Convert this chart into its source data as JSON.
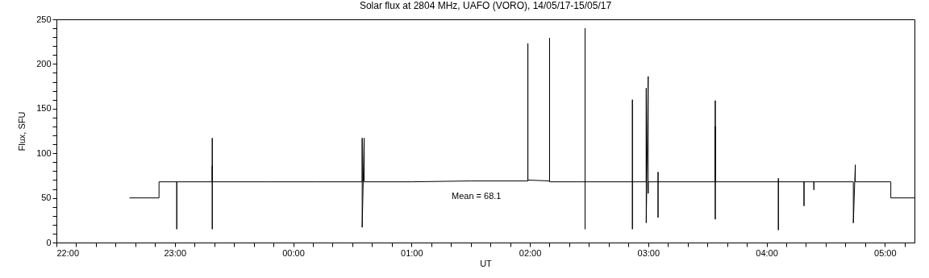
{
  "chart_data": {
    "type": "line",
    "title": "Solar flux at 2804 MHz, UAFO (VORO),  14/05/17-15/05/17",
    "xlabel": "UT",
    "ylabel": "Flux, SFU",
    "annotations": [
      "Mean =    68.1"
    ],
    "series": [
      {
        "color": "#000000",
        "x": [
          "--05-14T22:37",
          "--05-14T22:52",
          "--05-14T22:52",
          "--05-14T23:01",
          "--05-14T23:01",
          "--05-14T23:01",
          "--05-14T23:19",
          "--05-14T23:19",
          "--05-14T23:19",
          "--05-14T23:19",
          "--05-14T23:19",
          "--05-14T23:48",
          "--05-15T00:12",
          "--05-15T00:35",
          "--05-15T00:35",
          "--05-15T00:35",
          "--05-15T00:36",
          "--05-15T00:36",
          "--05-15T00:36",
          "--05-15T01:00",
          "--05-15T01:30",
          "--05-15T01:59",
          "--05-15T01:59",
          "--05-15T01:59",
          "--05-15T02:10",
          "--05-15T02:10",
          "--05-15T02:10",
          "--05-15T02:10",
          "--05-15T02:28",
          "--05-15T02:28",
          "--05-15T02:28",
          "--05-15T02:28",
          "--05-15T02:52",
          "--05-15T02:52",
          "--05-15T02:52",
          "--05-15T02:52",
          "--05-15T02:59",
          "--05-15T02:59",
          "--05-15T02:59",
          "--05-15T03:00",
          "--05-15T03:00",
          "--05-15T03:00",
          "--05-15T03:05",
          "--05-15T03:05",
          "--05-15T03:05",
          "--05-15T03:05",
          "--05-15T03:34",
          "--05-15T03:34",
          "--05-15T03:34",
          "--05-15T03:34",
          "--05-15T03:34",
          "--05-15T04:06",
          "--05-15T04:06",
          "--05-15T04:06",
          "--05-15T04:06",
          "--05-15T04:19",
          "--05-15T04:19",
          "--05-15T04:19",
          "--05-15T04:24",
          "--05-15T04:24",
          "--05-15T04:24",
          "--05-15T04:44",
          "--05-15T04:44",
          "--05-15T04:45",
          "--05-15T04:45",
          "--05-15T05:03",
          "--05-15T05:03",
          "--05-15T05:15"
        ],
        "values": [
          50,
          50,
          68,
          68,
          15,
          68,
          68,
          117,
          15,
          86,
          68,
          68,
          68,
          68,
          117,
          17,
          117,
          84,
          68,
          68,
          69,
          69,
          223,
          70,
          69,
          229,
          75,
          68,
          68,
          240,
          15,
          68,
          68,
          160,
          15,
          68,
          68,
          173,
          22,
          186,
          55,
          68,
          68,
          79,
          28,
          68,
          68,
          159,
          26,
          130,
          68,
          68,
          72,
          14,
          68,
          68,
          41,
          68,
          68,
          59,
          68,
          68,
          22,
          87,
          68,
          68,
          50,
          50
        ]
      }
    ],
    "xlim": [
      "--05-14T22:00",
      "--05-15T05:15"
    ],
    "xticks": [
      {
        "value": "--05-14T22:00",
        "label": "22:00"
      },
      {
        "value": "--05-14T22:10",
        "label": null
      },
      {
        "value": "--05-14T22:20",
        "label": null
      },
      {
        "value": "--05-14T22:30",
        "label": null
      },
      {
        "value": "--05-14T22:40",
        "label": null
      },
      {
        "value": "--05-14T22:50",
        "label": null
      },
      {
        "value": "--05-14T23:00",
        "label": "23:00"
      },
      {
        "value": "--05-14T23:10",
        "label": null
      },
      {
        "value": "--05-14T23:20",
        "label": null
      },
      {
        "value": "--05-14T23:30",
        "label": null
      },
      {
        "value": "--05-14T23:40",
        "label": null
      },
      {
        "value": "--05-14T23:50",
        "label": null
      },
      {
        "value": "--05-15T00:00",
        "label": "00:00"
      },
      {
        "value": "--05-15T00:10",
        "label": null
      },
      {
        "value": "--05-15T00:20",
        "label": null
      },
      {
        "value": "--05-15T00:30",
        "label": null
      },
      {
        "value": "--05-15T00:40",
        "label": null
      },
      {
        "value": "--05-15T00:50",
        "label": null
      },
      {
        "value": "--05-15T01:00",
        "label": "01:00"
      },
      {
        "value": "--05-15T01:10",
        "label": null
      },
      {
        "value": "--05-15T01:20",
        "label": null
      },
      {
        "value": "--05-15T01:30",
        "label": null
      },
      {
        "value": "--05-15T01:40",
        "label": null
      },
      {
        "value": "--05-15T01:50",
        "label": null
      },
      {
        "value": "--05-15T02:00",
        "label": "02:00"
      },
      {
        "value": "--05-15T02:10",
        "label": null
      },
      {
        "value": "--05-15T02:20",
        "label": null
      },
      {
        "value": "--05-15T02:30",
        "label": null
      },
      {
        "value": "--05-15T02:40",
        "label": null
      },
      {
        "value": "--05-15T02:50",
        "label": null
      },
      {
        "value": "--05-15T03:00",
        "label": "03:00"
      },
      {
        "value": "--05-15T03:10",
        "label": null
      },
      {
        "value": "--05-15T03:20",
        "label": null
      },
      {
        "value": "--05-15T03:30",
        "label": null
      },
      {
        "value": "--05-15T03:40",
        "label": null
      },
      {
        "value": "--05-15T03:50",
        "label": null
      },
      {
        "value": "--05-15T04:00",
        "label": "04:00"
      },
      {
        "value": "--05-15T04:10",
        "label": null
      },
      {
        "value": "--05-15T04:20",
        "label": null
      },
      {
        "value": "--05-15T04:30",
        "label": null
      },
      {
        "value": "--05-15T04:40",
        "label": null
      },
      {
        "value": "--05-15T04:50",
        "label": null
      },
      {
        "value": "--05-15T05:00",
        "label": "05:00"
      },
      {
        "value": "--05-15T05:10",
        "label": null
      }
    ],
    "ylim": [
      0,
      250
    ],
    "yticks": [
      0,
      {
        "value": 10,
        "label": null
      },
      {
        "value": 20,
        "label": null
      },
      {
        "value": 30,
        "label": null
      },
      {
        "value": 40,
        "label": null
      },
      50,
      {
        "value": 60,
        "label": null
      },
      {
        "value": 70,
        "label": null
      },
      {
        "value": 80,
        "label": null
      },
      {
        "value": 90,
        "label": null
      },
      100,
      {
        "value": 110,
        "label": null
      },
      {
        "value": 120,
        "label": null
      },
      {
        "value": 130,
        "label": null
      },
      {
        "value": 140,
        "label": null
      },
      150,
      {
        "value": 160,
        "label": null
      },
      {
        "value": 170,
        "label": null
      },
      {
        "value": 180,
        "label": null
      },
      {
        "value": 190,
        "label": null
      },
      200,
      {
        "value": 210,
        "label": null
      },
      {
        "value": 220,
        "label": null
      },
      {
        "value": 230,
        "label": null
      },
      {
        "value": 240,
        "label": null
      },
      250
    ],
    "grid": false,
    "marker": "none",
    "line_style": "solid"
  }
}
